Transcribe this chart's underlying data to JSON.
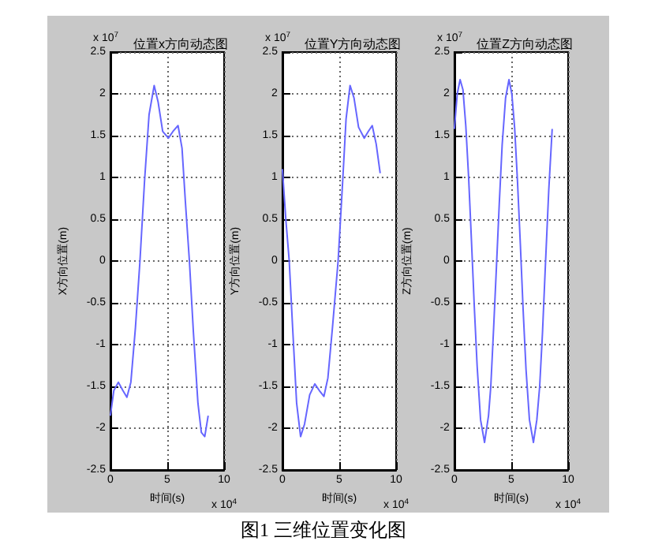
{
  "chart_data": [
    {
      "type": "line",
      "title": "位置x方向动态图",
      "xlabel": "时间(s)",
      "ylabel": "X方向位置(m)",
      "annotations": [
        "x 10$^{7}$",
        "x 10$^{4}$",
        "图1 三维位置变化图"
      ],
      "x": [
        0,
        0.3,
        0.7,
        1.1,
        1.45,
        1.8,
        2.2,
        2.6,
        3.0,
        3.4,
        3.85,
        4.2,
        4.6,
        5.1,
        5.5,
        5.95,
        6.3,
        6.6,
        6.95,
        7.3,
        7.7,
        8.0,
        8.3,
        8.6
      ],
      "values": [
        -1.85,
        -1.55,
        -1.45,
        -1.55,
        -1.63,
        -1.45,
        -0.8,
        0,
        0.95,
        1.75,
        2.1,
        1.9,
        1.55,
        1.47,
        1.55,
        1.62,
        1.35,
        0.7,
        0,
        -0.85,
        -1.7,
        -2.05,
        -2.1,
        -1.85
      ],
      "color": "#6666ff",
      "xlim": [
        0,
        10
      ],
      "ylim": [
        -2.5,
        2.5
      ],
      "xticks": [
        0,
        5,
        10
      ],
      "yticks": [
        -2.5,
        -2,
        -1.5,
        -1,
        -0.5,
        0,
        0.5,
        1,
        1.5,
        2,
        2.5
      ],
      "grid": true,
      "line_style": "solid"
    },
    {
      "type": "line",
      "title": "位置Y方向动态图",
      "xlabel": "时间(s)",
      "ylabel": "Y方向位置(m)",
      "annotations": [
        "x 10$^{7}$",
        "x 10$^{4}$"
      ],
      "x": [
        0,
        0.3,
        0.6,
        0.9,
        1.25,
        1.6,
        1.95,
        2.4,
        2.85,
        3.25,
        3.65,
        4.0,
        4.4,
        4.9,
        5.3,
        5.6,
        5.95,
        6.3,
        6.7,
        7.2,
        7.55,
        7.9,
        8.25,
        8.6
      ],
      "values": [
        1.1,
        0.5,
        0,
        -0.8,
        -1.7,
        -2.1,
        -1.95,
        -1.6,
        -1.47,
        -1.55,
        -1.62,
        -1.4,
        -0.8,
        0,
        0.95,
        1.7,
        2.1,
        1.95,
        1.6,
        1.47,
        1.55,
        1.62,
        1.4,
        1.05
      ],
      "color": "#6666ff",
      "xlim": [
        0,
        10
      ],
      "ylim": [
        -2.5,
        2.5
      ],
      "xticks": [
        0,
        5,
        10
      ],
      "yticks": [
        -2.5,
        -2,
        -1.5,
        -1,
        -0.5,
        0,
        0.5,
        1,
        1.5,
        2,
        2.5
      ],
      "grid": true,
      "line_style": "solid"
    },
    {
      "type": "line",
      "title": "位置Z方向动态图",
      "xlabel": "时间(s)",
      "ylabel": "Z方向位置(m)",
      "annotations": [
        "x 10$^{7}$",
        "x 10$^{4}$"
      ],
      "x": [
        0,
        0.25,
        0.5,
        0.75,
        1.0,
        1.25,
        1.5,
        1.75,
        2.0,
        2.3,
        2.65,
        3.0,
        3.2,
        3.45,
        3.7,
        3.95,
        4.2,
        4.5,
        4.8,
        5.05,
        5.3,
        5.55,
        5.8,
        6.05,
        6.3,
        6.6,
        6.95,
        7.25,
        7.5,
        7.75,
        8.0,
        8.3,
        8.6
      ],
      "values": [
        1.58,
        2.0,
        2.17,
        2.05,
        1.62,
        1.0,
        0.24,
        -0.55,
        -1.26,
        -1.9,
        -2.17,
        -1.85,
        -1.5,
        -0.8,
        -0.06,
        0.7,
        1.39,
        1.95,
        2.17,
        2.0,
        1.59,
        0.95,
        0.2,
        -0.6,
        -1.3,
        -1.9,
        -2.17,
        -1.9,
        -1.5,
        -0.85,
        -0.06,
        0.85,
        1.58
      ],
      "color": "#6666ff",
      "xlim": [
        0,
        10
      ],
      "ylim": [
        -2.5,
        2.5
      ],
      "xticks": [
        0,
        5,
        10
      ],
      "yticks": [
        -2.5,
        -2,
        -1.5,
        -1,
        -0.5,
        0,
        0.5,
        1,
        1.5,
        2,
        2.5
      ],
      "grid": true,
      "line_style": "solid"
    }
  ]
}
